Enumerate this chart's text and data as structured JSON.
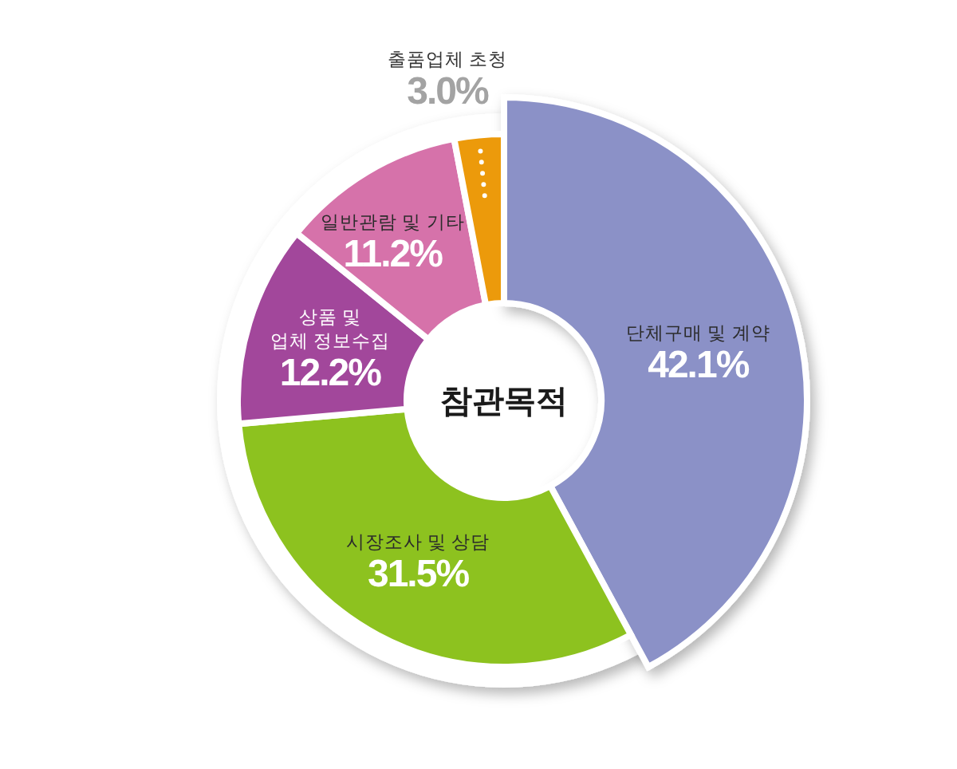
{
  "chart_data": {
    "type": "donut",
    "title": "참관목적",
    "categories": [
      "단체구매 및 계약",
      "시장조사 및 상담",
      "상품 및 업체 정보수집",
      "일반관람 및 기타",
      "출품업체 초청"
    ],
    "values": [
      42.1,
      31.5,
      12.2,
      11.2,
      3.0
    ],
    "colors": [
      "#8b91c7",
      "#8dc21f",
      "#a2479b",
      "#d672aa",
      "#ec9a0b"
    ],
    "value_labels": [
      "42.1%",
      "31.5%",
      "12.2%",
      "11.2%",
      "3.0%"
    ]
  }
}
